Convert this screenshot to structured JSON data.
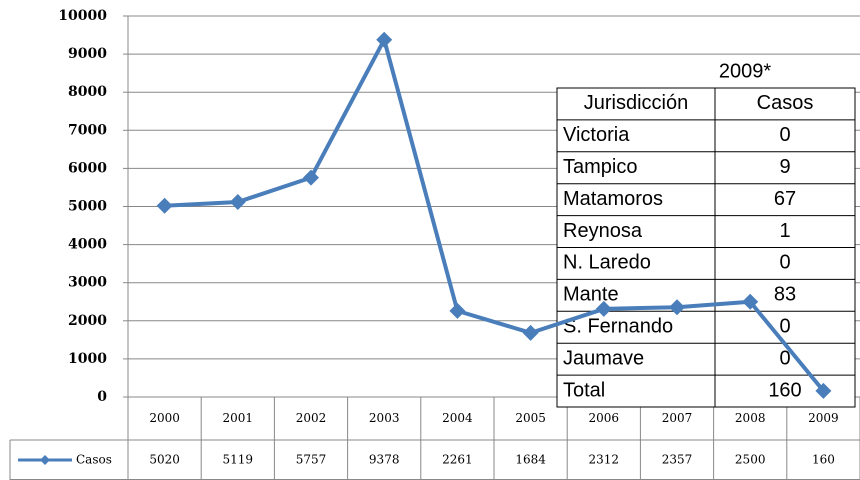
{
  "chart_data": {
    "type": "line",
    "categories": [
      "2000",
      "2001",
      "2002",
      "2003",
      "2004",
      "2005",
      "2006",
      "2007",
      "2008",
      "2009"
    ],
    "series": [
      {
        "name": "Casos",
        "color": "#4a7ebb",
        "values": [
          5020,
          5119,
          5757,
          9378,
          2261,
          1684,
          2312,
          2357,
          2500,
          160
        ]
      }
    ],
    "ylim": [
      0,
      10000
    ],
    "yticks": [
      0,
      1000,
      2000,
      3000,
      4000,
      5000,
      6000,
      7000,
      8000,
      9000,
      10000
    ],
    "grid": true
  },
  "table": {
    "title": "2009*",
    "header": [
      "Jurisdicción",
      "Casos"
    ],
    "rows": [
      [
        "Victoria",
        0
      ],
      [
        "Tampico",
        9
      ],
      [
        "Matamoros",
        67
      ],
      [
        "Reynosa",
        1
      ],
      [
        "N. Laredo",
        0
      ],
      [
        "Mante",
        83
      ],
      [
        "S. Fernando",
        0
      ],
      [
        "Jaumave",
        0
      ],
      [
        "Total",
        160
      ]
    ]
  }
}
